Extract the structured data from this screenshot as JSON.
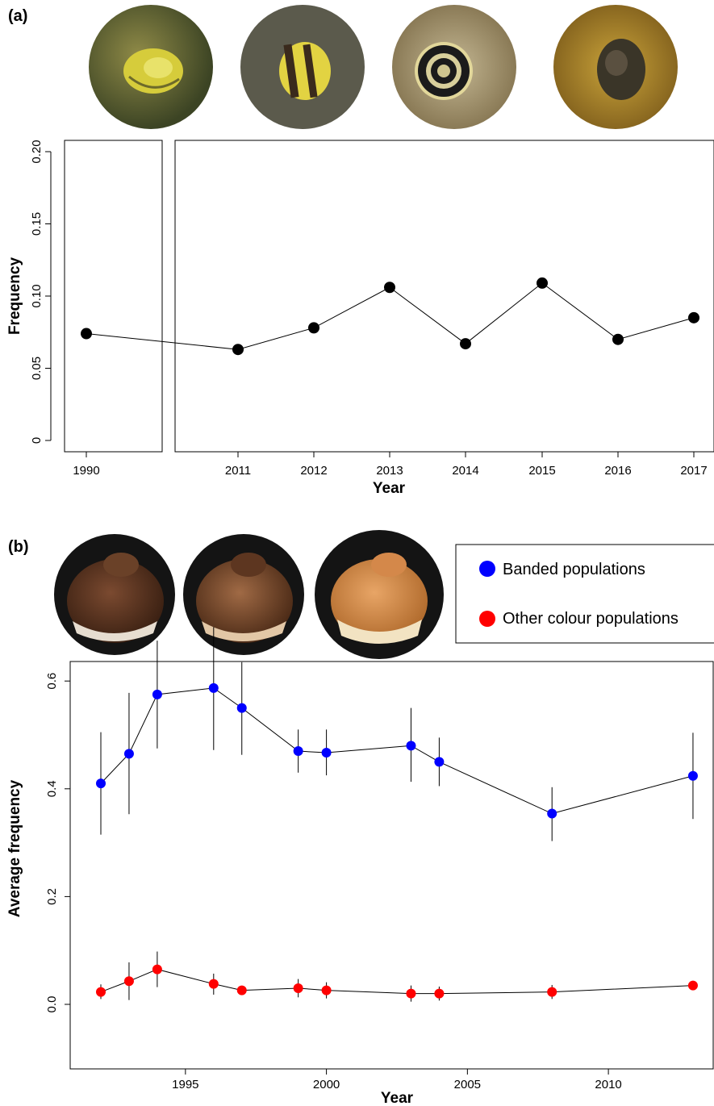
{
  "panel_a": {
    "label": "(a)",
    "photo_icons": [
      "snail-yellow-photo-icon",
      "snail-banded-yellow-photo-icon",
      "snail-dark-banded-photo-icon",
      "snail-brown-photo-icon"
    ]
  },
  "panel_b": {
    "label": "(b)",
    "photo_icons": [
      "shell-dark-brown-photo-icon",
      "shell-brown-photo-icon",
      "shell-orange-photo-icon"
    ],
    "legend": [
      "Banded populations",
      "Other colour populations"
    ]
  },
  "chart_data": [
    {
      "type": "line",
      "panel": "a",
      "xlabel": "Year",
      "ylabel": "Frequency",
      "categories": [
        "1990",
        "2011",
        "2012",
        "2013",
        "2014",
        "2015",
        "2016",
        "2017"
      ],
      "values": [
        0.074,
        0.063,
        0.078,
        0.106,
        0.067,
        0.109,
        0.07,
        0.085
      ],
      "ylim": [
        0,
        0.2
      ],
      "yticks": [
        "0",
        "0.05",
        "0.10",
        "0.15",
        "0.20"
      ],
      "broken_axis_after": "1990",
      "marker_color": "#000000"
    },
    {
      "type": "line",
      "panel": "b",
      "xlabel": "Year",
      "ylabel": "Average frequency",
      "xlim": [
        1991.7,
        2014
      ],
      "ylim": [
        -0.02,
        0.72
      ],
      "xticks": [
        1995,
        2000,
        2005,
        2010
      ],
      "yticks": [
        "0.0",
        "0.2",
        "0.4",
        "0.6"
      ],
      "x": [
        1992,
        1993,
        1994,
        1996,
        1997,
        1999,
        2000,
        2003,
        2004,
        2008,
        2013
      ],
      "series": [
        {
          "name": "Banded populations",
          "color": "#0000ff",
          "values": [
            0.41,
            0.465,
            0.575,
            0.587,
            0.55,
            0.47,
            0.467,
            0.48,
            0.45,
            0.354,
            0.424
          ],
          "error_low": [
            0.315,
            0.353,
            0.475,
            0.472,
            0.463,
            0.43,
            0.425,
            0.413,
            0.405,
            0.303,
            0.344
          ],
          "error_high": [
            0.505,
            0.578,
            0.675,
            0.7,
            0.635,
            0.51,
            0.51,
            0.55,
            0.495,
            0.403,
            0.504
          ]
        },
        {
          "name": "Other colour populations",
          "color": "#ff0000",
          "values": [
            0.023,
            0.043,
            0.065,
            0.038,
            0.026,
            0.03,
            0.026,
            0.02,
            0.02,
            0.023,
            0.035
          ],
          "error_low": [
            0.01,
            0.008,
            0.032,
            0.018,
            0.018,
            0.013,
            0.011,
            0.005,
            0.007,
            0.01,
            0.029
          ],
          "error_high": [
            0.037,
            0.078,
            0.098,
            0.057,
            0.034,
            0.047,
            0.041,
            0.035,
            0.033,
            0.036,
            0.041
          ]
        }
      ]
    }
  ]
}
